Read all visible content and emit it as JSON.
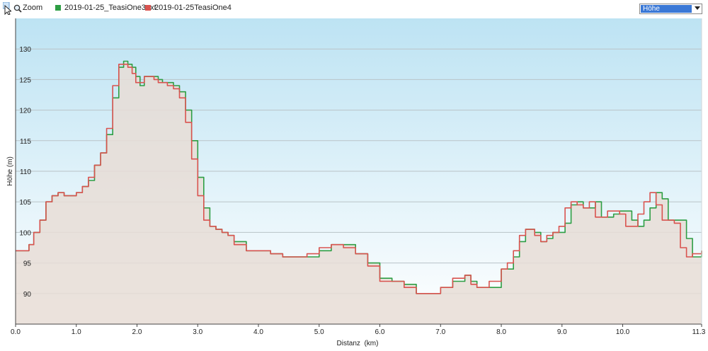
{
  "toolbar": {
    "zoom_label": "Zoom",
    "select_value": "Höhe",
    "icons": [
      "cursor-icon",
      "magnifier-icon",
      "chevron-down-icon"
    ]
  },
  "colors": {
    "series_green": "#2e9e44",
    "series_red": "#d9534f",
    "plot_top": "#bde3f3",
    "plot_bottom": "#ffffff",
    "fill": "#e8ddd6",
    "grid": "#b9c3c8",
    "select_highlight": "#3a78d6"
  },
  "chart_data": {
    "type": "line",
    "xlabel": "Distanz  (km)",
    "ylabel": "Höhe (m)",
    "xlim": [
      0,
      11.3
    ],
    "ylim": [
      85,
      135
    ],
    "grid": true,
    "legend_position": "top-left",
    "x_ticks": [
      0,
      1,
      2,
      3,
      4,
      5,
      6,
      7,
      8,
      9,
      10,
      11.3
    ],
    "x_tick_labels": [
      "0.0",
      "1.0",
      "2.0",
      "3.0",
      "4.0",
      "5.0",
      "6.0",
      "7.0",
      "8.0",
      "9.0",
      "10.0",
      "11.3"
    ],
    "y_ticks": [
      90,
      95,
      100,
      105,
      110,
      115,
      120,
      125,
      130
    ],
    "y_tick_labels": [
      "90",
      "95",
      "100",
      "105",
      "110",
      "115",
      "120",
      "125",
      "130"
    ],
    "series": [
      {
        "name": "2019-01-25_TeasiOne3ext",
        "color": "#2e9e44",
        "x": [
          0,
          0.12,
          0.22,
          0.3,
          0.4,
          0.5,
          0.6,
          0.7,
          0.8,
          0.9,
          1.0,
          1.1,
          1.2,
          1.3,
          1.4,
          1.5,
          1.6,
          1.7,
          1.78,
          1.85,
          1.92,
          1.98,
          2.05,
          2.12,
          2.2,
          2.28,
          2.35,
          2.42,
          2.5,
          2.6,
          2.7,
          2.8,
          2.9,
          3.0,
          3.1,
          3.2,
          3.3,
          3.4,
          3.5,
          3.6,
          3.8,
          4.0,
          4.2,
          4.4,
          4.5,
          4.6,
          4.8,
          5.0,
          5.2,
          5.4,
          5.6,
          5.8,
          6.0,
          6.2,
          6.4,
          6.6,
          6.8,
          7.0,
          7.2,
          7.4,
          7.5,
          7.6,
          7.8,
          8.0,
          8.1,
          8.2,
          8.3,
          8.4,
          8.55,
          8.65,
          8.75,
          8.85,
          8.95,
          9.05,
          9.15,
          9.25,
          9.35,
          9.45,
          9.55,
          9.65,
          9.75,
          9.85,
          9.95,
          10.05,
          10.15,
          10.25,
          10.35,
          10.45,
          10.55,
          10.65,
          10.75,
          10.85,
          10.95,
          11.05,
          11.15,
          11.3
        ],
        "values": [
          97,
          97,
          98,
          100,
          102,
          105,
          106,
          106.5,
          106,
          106,
          106.5,
          107.5,
          108.5,
          111,
          113,
          116,
          122,
          127,
          128,
          127.5,
          127,
          125.5,
          124,
          125.5,
          125.5,
          125.5,
          125,
          124.5,
          124.5,
          124,
          123,
          120,
          115,
          109,
          104,
          101,
          100.5,
          100,
          99.5,
          98.5,
          97,
          97,
          96.5,
          96,
          96,
          96,
          96,
          97,
          98,
          98,
          96.5,
          95,
          92.5,
          92,
          91.5,
          90,
          90,
          91,
          92,
          93,
          92,
          91,
          91,
          94,
          94,
          96,
          98.5,
          100.5,
          100,
          98.5,
          99,
          100,
          100,
          101.5,
          104.5,
          105,
          104,
          104,
          105,
          102.5,
          102.5,
          103,
          103.5,
          103.5,
          102,
          101,
          102,
          104,
          106.5,
          105.5,
          102,
          102,
          102,
          99,
          96,
          97
        ]
      },
      {
        "name": "2019-01-25TeasiOne4",
        "color": "#d9534f",
        "x": [
          0,
          0.12,
          0.22,
          0.3,
          0.4,
          0.5,
          0.6,
          0.7,
          0.8,
          0.9,
          1.0,
          1.1,
          1.2,
          1.3,
          1.4,
          1.5,
          1.6,
          1.7,
          1.78,
          1.85,
          1.92,
          1.98,
          2.05,
          2.12,
          2.2,
          2.28,
          2.35,
          2.42,
          2.5,
          2.6,
          2.7,
          2.8,
          2.9,
          3.0,
          3.1,
          3.2,
          3.3,
          3.4,
          3.5,
          3.6,
          3.8,
          4.0,
          4.2,
          4.4,
          4.5,
          4.6,
          4.8,
          5.0,
          5.2,
          5.4,
          5.6,
          5.8,
          6.0,
          6.2,
          6.4,
          6.6,
          6.8,
          7.0,
          7.2,
          7.4,
          7.5,
          7.6,
          7.8,
          8.0,
          8.1,
          8.2,
          8.3,
          8.4,
          8.55,
          8.65,
          8.75,
          8.85,
          8.95,
          9.05,
          9.15,
          9.25,
          9.35,
          9.45,
          9.55,
          9.65,
          9.75,
          9.85,
          9.95,
          10.05,
          10.15,
          10.25,
          10.35,
          10.45,
          10.55,
          10.65,
          10.75,
          10.85,
          10.95,
          11.05,
          11.15,
          11.3
        ],
        "values": [
          97,
          97,
          98,
          100,
          102,
          105,
          106,
          106.5,
          106,
          106,
          106.5,
          107.5,
          109,
          111,
          113,
          117,
          124,
          127.5,
          127.5,
          127,
          126,
          124.5,
          124.5,
          125.5,
          125.5,
          125,
          124.5,
          124.5,
          124,
          123.5,
          122,
          118,
          112,
          106,
          102,
          101,
          100.5,
          100,
          99.5,
          98,
          97,
          97,
          96.5,
          96,
          96,
          96,
          96.5,
          97.5,
          98,
          97.5,
          96.5,
          94.5,
          92,
          92,
          91,
          90,
          90,
          91,
          92.5,
          93,
          91.5,
          91,
          92,
          94,
          95,
          97,
          99.5,
          100.5,
          99.5,
          98.5,
          99.5,
          100,
          101,
          104,
          105,
          104.5,
          104,
          105,
          102.5,
          102.5,
          103.5,
          103.5,
          103,
          101,
          101,
          103,
          105,
          106.5,
          104.5,
          102,
          102,
          101.5,
          97.5,
          96,
          96.5,
          97
        ]
      }
    ]
  }
}
